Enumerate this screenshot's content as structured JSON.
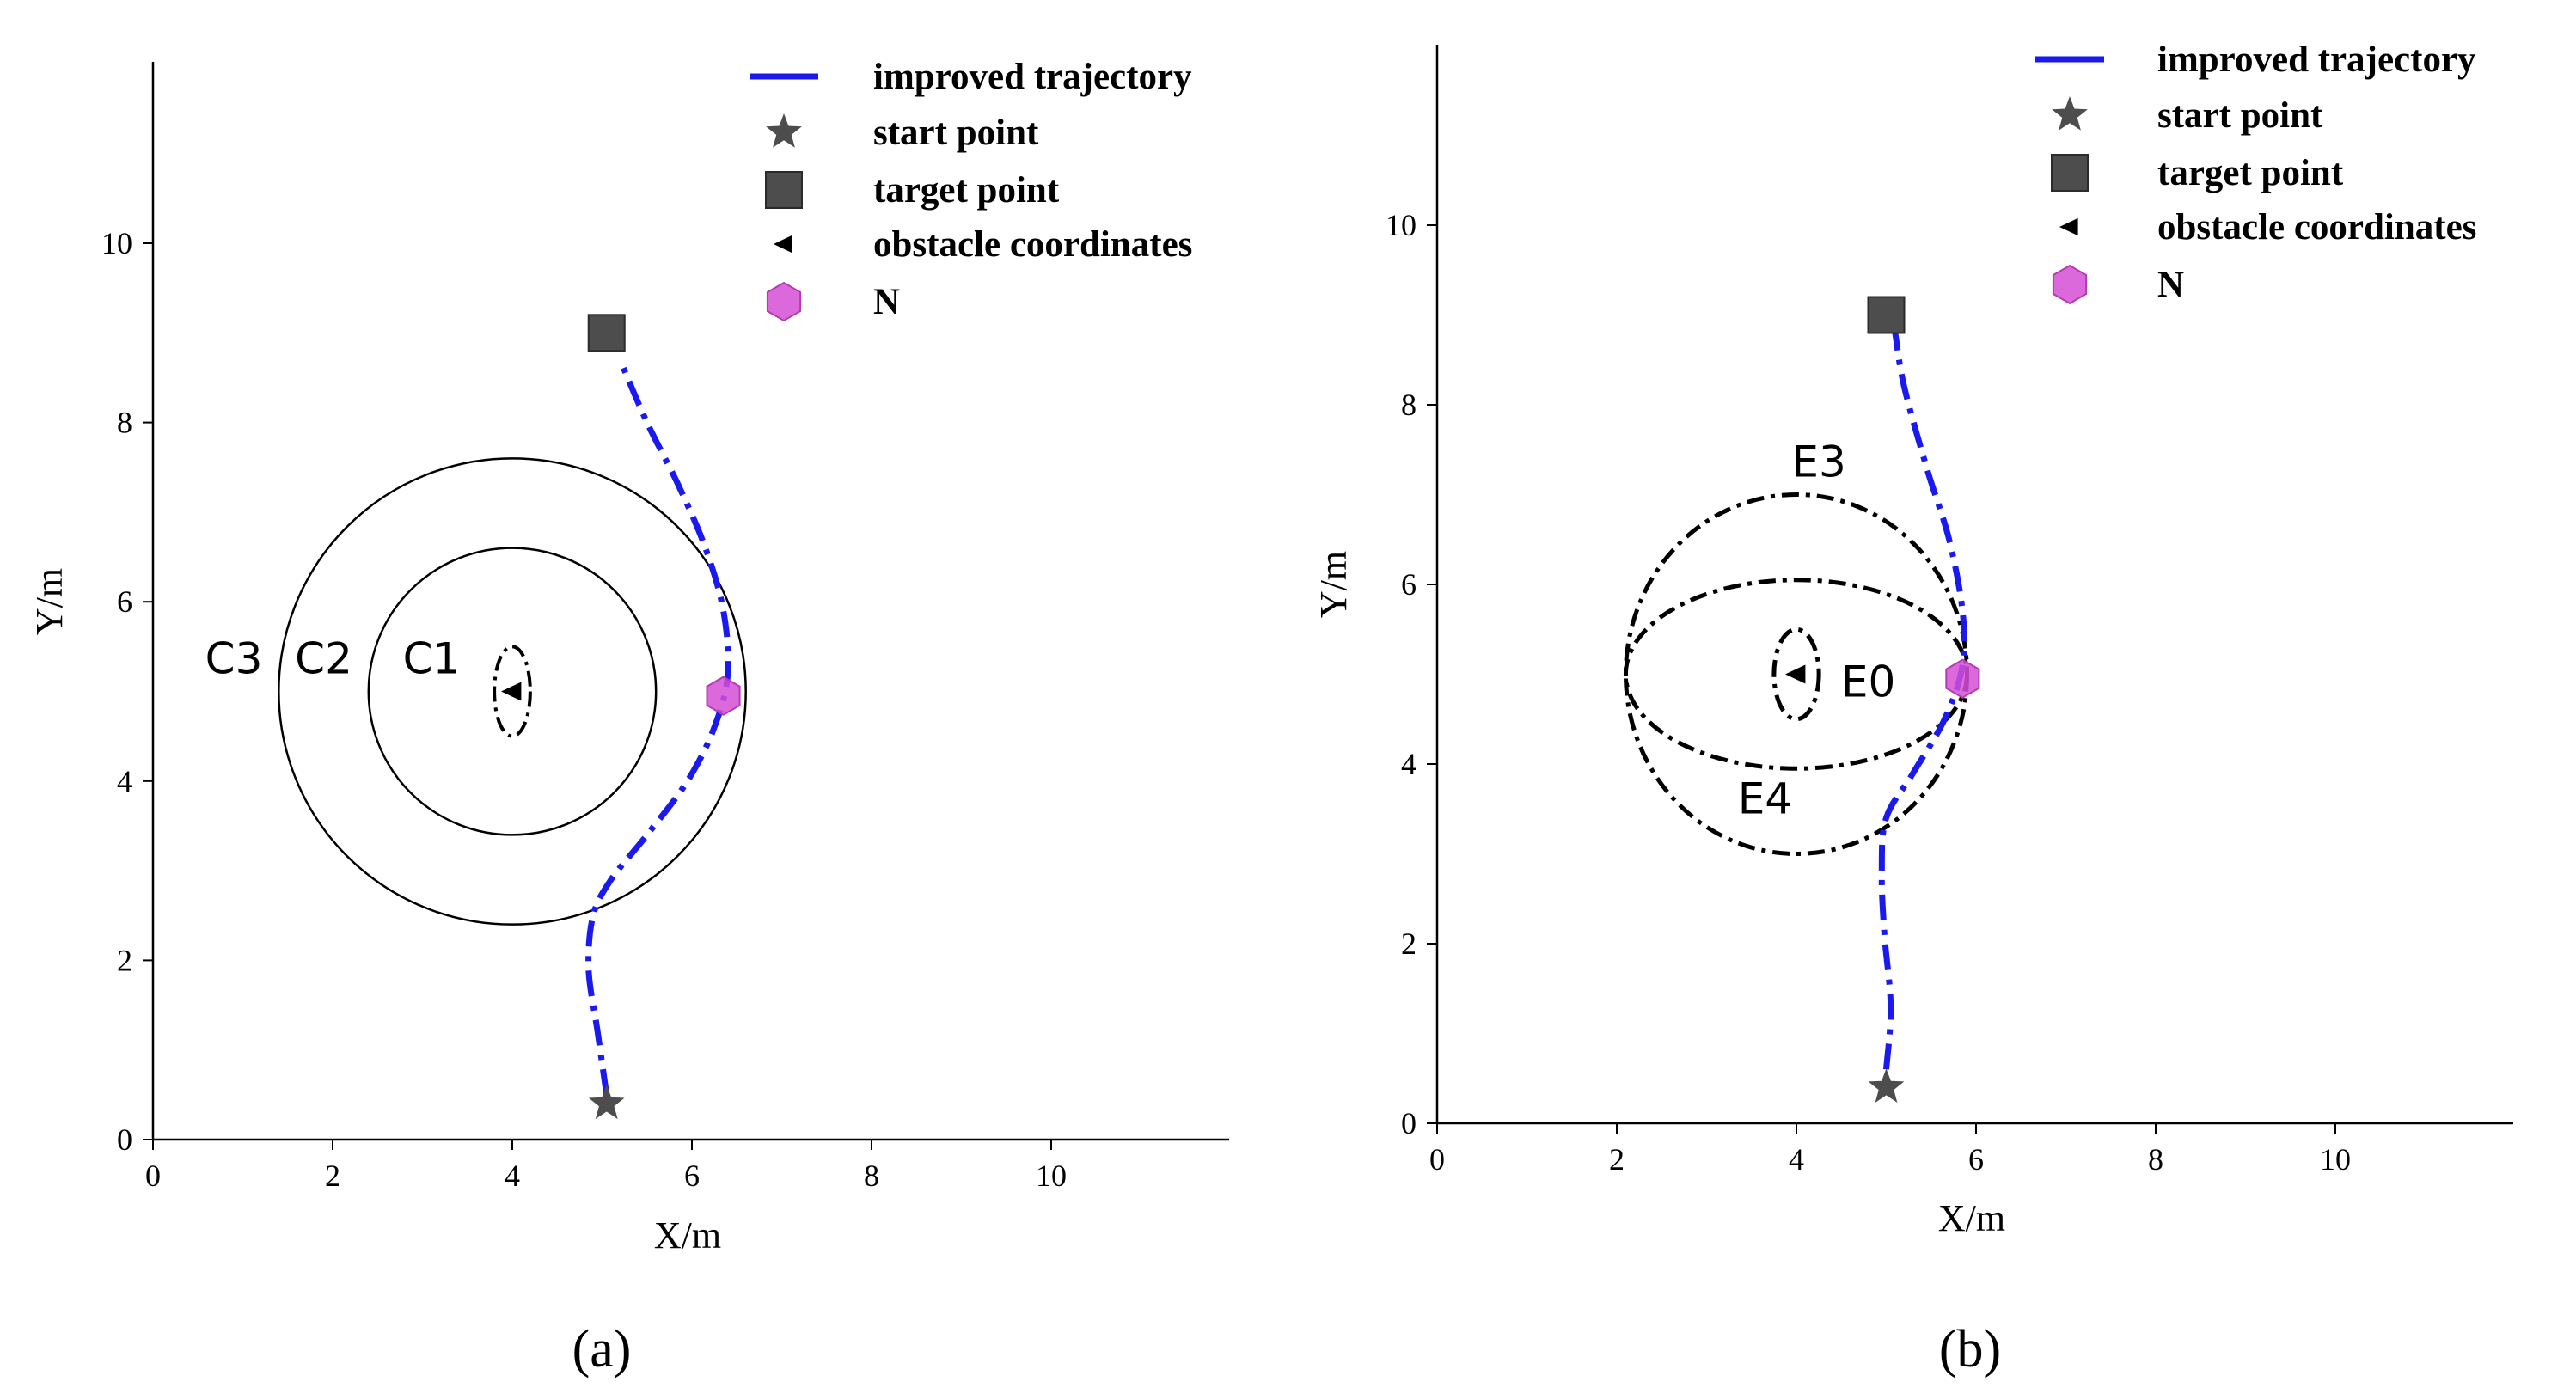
{
  "chart_data": [
    {
      "type": "line",
      "panel": "a",
      "caption": "(a)",
      "xlabel": "X/m",
      "ylabel": "Y/m",
      "xlim": [
        0,
        12
      ],
      "ylim": [
        0,
        12
      ],
      "xticks": [
        0,
        2,
        4,
        6,
        8,
        10
      ],
      "yticks": [
        0,
        2,
        4,
        6,
        8,
        10
      ],
      "legend": {
        "placement": "top-right",
        "entries": [
          "improved trajectory",
          "start point",
          "target point",
          "obstacle coordinates",
          "N"
        ]
      },
      "start_point": [
        5.05,
        0.4
      ],
      "target_point": [
        5.05,
        9.0
      ],
      "obstacle": [
        4.0,
        5.0
      ],
      "n_point": [
        6.35,
        4.95
      ],
      "trajectory": {
        "x": [
          5.05,
          4.95,
          4.85,
          4.9,
          5.1,
          5.5,
          5.95,
          6.25,
          6.4,
          6.35,
          6.15,
          5.85,
          5.5,
          5.2
        ],
        "y": [
          0.5,
          1.2,
          1.9,
          2.5,
          2.9,
          3.4,
          4.0,
          4.6,
          5.2,
          5.9,
          6.6,
          7.3,
          8.0,
          8.7
        ]
      },
      "circles": [
        {
          "label": "C1",
          "shape": "ellipse",
          "cx": 4.0,
          "cy": 5.0,
          "rx": 0.2,
          "ry": 0.5,
          "style": "dashdot"
        },
        {
          "label": "C2",
          "shape": "circle",
          "cx": 4.0,
          "cy": 5.0,
          "r": 1.6,
          "style": "solid"
        },
        {
          "label": "C3",
          "shape": "circle",
          "cx": 4.0,
          "cy": 5.0,
          "r": 2.6,
          "style": "solid"
        }
      ],
      "region_labels": [
        {
          "text": "C3",
          "x": 0.9,
          "y": 5.2
        },
        {
          "text": "C2",
          "x": 1.9,
          "y": 5.2
        },
        {
          "text": "C1",
          "x": 3.1,
          "y": 5.2
        }
      ]
    },
    {
      "type": "line",
      "panel": "b",
      "caption": "(b)",
      "xlabel": "X/m",
      "ylabel": "Y/m",
      "xlim": [
        0,
        12
      ],
      "ylim": [
        0,
        12
      ],
      "xticks": [
        0,
        2,
        4,
        6,
        8,
        10
      ],
      "yticks": [
        0,
        2,
        4,
        6,
        8,
        10
      ],
      "legend": {
        "placement": "top-right",
        "entries": [
          "improved trajectory",
          "start point",
          "target point",
          "obstacle coordinates",
          "N"
        ]
      },
      "start_point": [
        5.0,
        0.4
      ],
      "target_point": [
        5.0,
        9.0
      ],
      "obstacle": [
        4.0,
        5.0
      ],
      "n_point": [
        5.85,
        4.95
      ],
      "trajectory": {
        "x": [
          5.0,
          5.05,
          4.98,
          4.95,
          5.0,
          5.3,
          5.65,
          5.85,
          5.85,
          5.7,
          5.45,
          5.2,
          5.1
        ],
        "y": [
          0.6,
          1.3,
          2.1,
          2.8,
          3.4,
          3.9,
          4.5,
          5.1,
          5.7,
          6.5,
          7.3,
          8.2,
          8.8
        ]
      },
      "ellipses": [
        {
          "label": "E0",
          "cx": 4.0,
          "cy": 5.0,
          "rx": 0.25,
          "ry": 0.5
        },
        {
          "label": "E3",
          "cx": 4.0,
          "cy": 5.0,
          "rx": 1.9,
          "ry": 1.05
        },
        {
          "label": "E4",
          "cx": 4.0,
          "cy": 5.0,
          "rx": 1.9,
          "ry": 2.0
        }
      ],
      "region_labels": [
        {
          "text": "E3",
          "x": 4.25,
          "y": 7.2
        },
        {
          "text": "E0",
          "x": 4.8,
          "y": 4.75
        },
        {
          "text": "E4",
          "x": 3.65,
          "y": 3.45
        }
      ]
    }
  ]
}
